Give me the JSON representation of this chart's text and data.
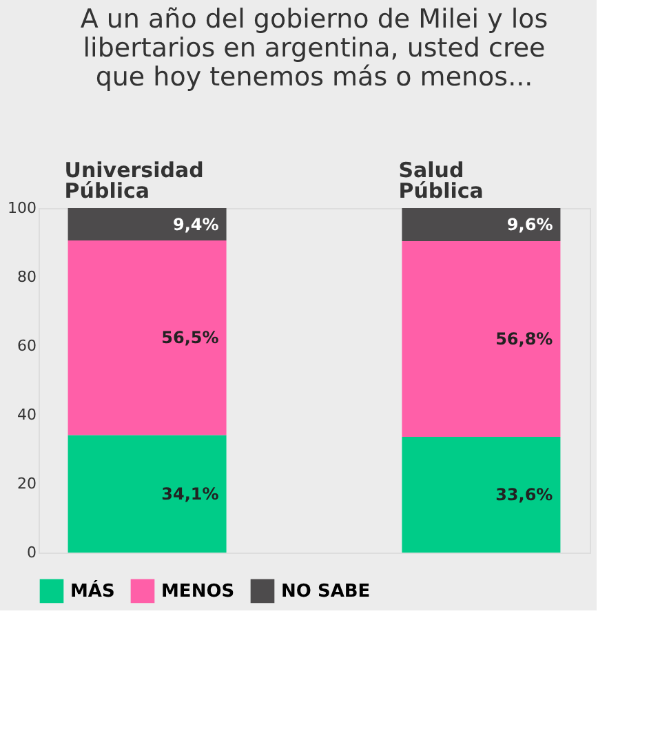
{
  "chart_data": {
    "type": "bar",
    "stacked": true,
    "title": "A un año del gobierno de Milei y los libertarios en argentina, usted cree que hoy tenemos más o menos...",
    "categories": [
      "Universidad Pública",
      "Salud Pública"
    ],
    "series": [
      {
        "name": "MÁS",
        "color": "#00cc88",
        "values": [
          34.1,
          33.6
        ],
        "value_labels": [
          "34,1%",
          "33,6%"
        ]
      },
      {
        "name": "MENOS",
        "color": "#ff5fa8",
        "values": [
          56.5,
          56.8
        ],
        "value_labels": [
          "56,5%",
          "56,8%"
        ]
      },
      {
        "name": "NO SABE",
        "color": "#4d4b4c",
        "values": [
          9.4,
          9.6
        ],
        "value_labels": [
          "9,4%",
          "9,6%"
        ]
      }
    ],
    "ylim": [
      0,
      100
    ],
    "yticks": [
      0,
      20,
      40,
      60,
      80,
      100
    ],
    "grid": false,
    "legend": "bottom"
  }
}
